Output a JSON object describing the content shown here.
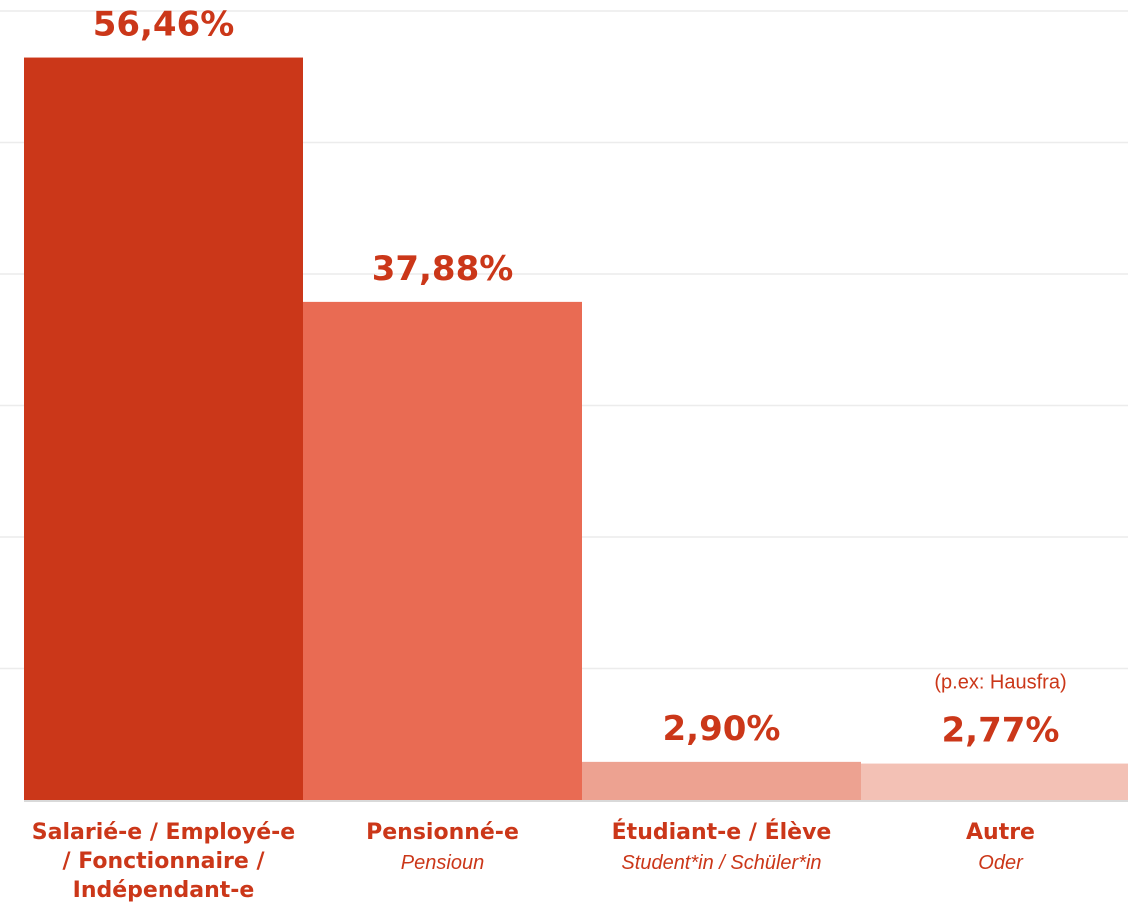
{
  "chart_data": {
    "type": "bar",
    "title": "",
    "xlabel": "",
    "ylabel": "",
    "ylim": [
      0,
      60
    ],
    "grid": true,
    "categories": [
      {
        "label": "Salarié-e / Employé-e / Fonctionnaire / Indépendant-e",
        "sublabel": "",
        "value": 56.46,
        "value_label": "56,46%",
        "color": "#cb3719"
      },
      {
        "label": "Pensionné-e",
        "sublabel": "Pensioun",
        "value": 37.88,
        "value_label": "37,88%",
        "color": "#e96b53"
      },
      {
        "label": "Étudiant-e / Élève",
        "sublabel": "Student*in / Schüler*in",
        "value": 2.9,
        "value_label": "2,90%",
        "color": "#eda291"
      },
      {
        "label": "Autre",
        "sublabel": "Oder",
        "value": 2.77,
        "value_label": "2,77%",
        "color": "#f3c1b5",
        "note": "(p.ex: Hausfra)"
      }
    ],
    "gridlines": [
      10,
      20,
      30,
      40,
      50,
      60
    ]
  }
}
